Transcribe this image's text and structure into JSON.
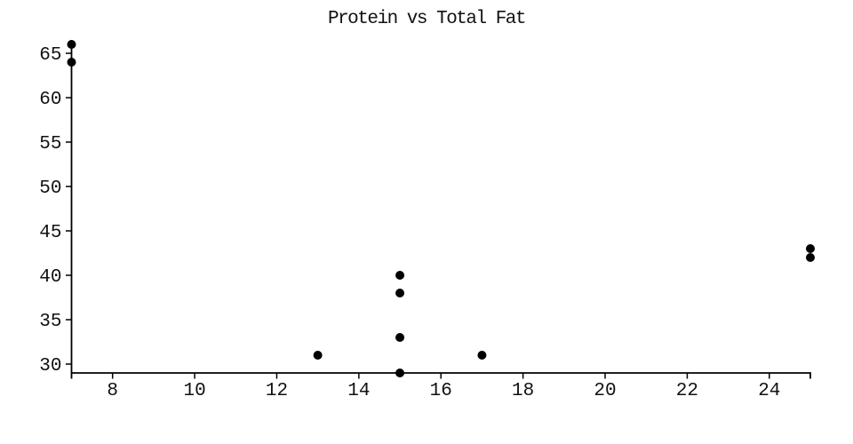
{
  "figure": {
    "background_color": "#ffffff",
    "text_color": "#111111"
  },
  "chart_data": {
    "type": "scatter",
    "title": "Protein vs Total Fat",
    "xlabel": "",
    "ylabel": "",
    "points": [
      [
        7,
        66
      ],
      [
        7,
        64
      ],
      [
        13,
        31
      ],
      [
        15,
        29
      ],
      [
        15,
        33
      ],
      [
        15,
        38
      ],
      [
        15,
        40
      ],
      [
        17,
        31
      ],
      [
        25,
        42
      ],
      [
        25,
        43
      ]
    ],
    "xlim": [
      7,
      25
    ],
    "ylim": [
      29,
      66.5
    ],
    "xticks": [
      8,
      10,
      12,
      14,
      16,
      18,
      20,
      22,
      24
    ],
    "yticks": [
      30,
      35,
      40,
      45,
      50,
      55,
      60,
      65
    ],
    "grid": false,
    "legend": "none",
    "marker": {
      "shape": "circle",
      "radius": 5,
      "color": "#000000"
    },
    "axis_color": "#000000",
    "tick_label_color": "#111111"
  }
}
